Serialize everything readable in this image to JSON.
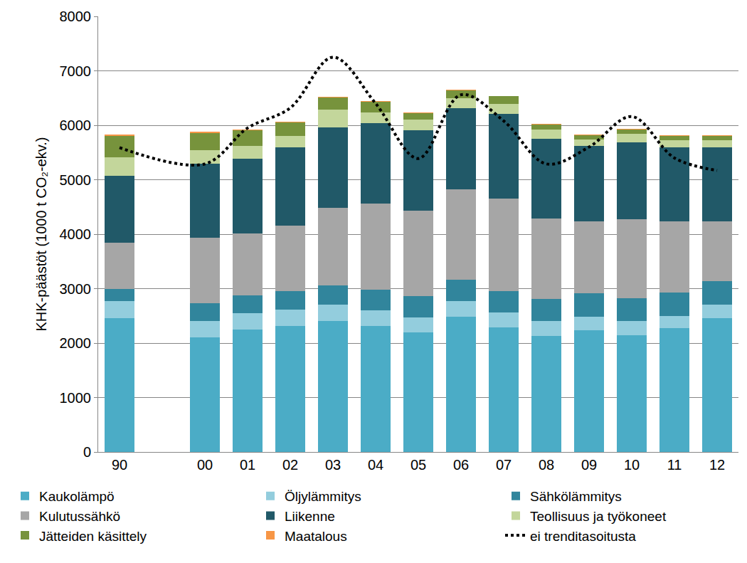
{
  "chart_data": {
    "type": "bar",
    "stacked": true,
    "grid": true,
    "legend": "bottom",
    "y_label": "KHK-päästöt (1000 t CO₂-ekv.)",
    "categories": [
      "90",
      null,
      "00",
      "01",
      "02",
      "03",
      "04",
      "05",
      "06",
      "07",
      "08",
      "09",
      "10",
      "11",
      "12"
    ],
    "ylim": [
      0,
      8000
    ],
    "yticks": [
      0,
      1000,
      2000,
      3000,
      4000,
      5000,
      6000,
      7000,
      8000
    ],
    "series": [
      {
        "name": "Kaukolämpö",
        "color": "#4BACC6",
        "values": [
          2460,
          null,
          2100,
          2250,
          2310,
          2400,
          2310,
          2200,
          2480,
          2290,
          2130,
          2230,
          2150,
          2270,
          2460
        ]
      },
      {
        "name": "Öljylämmitys",
        "color": "#93CDDD",
        "values": [
          310,
          null,
          300,
          300,
          300,
          310,
          290,
          270,
          290,
          270,
          280,
          250,
          250,
          230,
          240
        ]
      },
      {
        "name": "Sähkölämmitys",
        "color": "#31859C",
        "values": [
          220,
          null,
          330,
          320,
          350,
          350,
          380,
          390,
          390,
          400,
          400,
          430,
          430,
          430,
          440
        ]
      },
      {
        "name": "Kulutussähkö",
        "color": "#A6A6A6",
        "values": [
          855,
          null,
          1210,
          1140,
          1200,
          1430,
          1580,
          1570,
          1670,
          1690,
          1480,
          1320,
          1450,
          1310,
          1100
        ]
      },
      {
        "name": "Liikenne",
        "color": "#215968",
        "values": [
          1230,
          null,
          1360,
          1380,
          1430,
          1470,
          1480,
          1480,
          1480,
          1560,
          1460,
          1390,
          1410,
          1350,
          1360
        ]
      },
      {
        "name": "Teollisuus ja työkoneet",
        "color": "#C3D69B",
        "values": [
          335,
          null,
          240,
          230,
          210,
          330,
          190,
          200,
          190,
          180,
          170,
          120,
          150,
          130,
          120
        ]
      },
      {
        "name": "Jätteiden käsittely",
        "color": "#77933C",
        "values": [
          400,
          null,
          320,
          290,
          250,
          220,
          200,
          110,
          140,
          140,
          90,
          80,
          80,
          90,
          90
        ]
      },
      {
        "name": "Maatalous",
        "color": "#F79646",
        "values": [
          20,
          null,
          20,
          10,
          10,
          10,
          10,
          10,
          10,
          10,
          10,
          10,
          10,
          10,
          10
        ]
      },
      {
        "name": "ei trenditasoitusta",
        "color": "#000000",
        "type": "line",
        "line_style": "dotted",
        "values": [
          5590,
          null,
          5290,
          5950,
          6320,
          7250,
          6400,
          5390,
          6560,
          6080,
          5290,
          5600,
          6160,
          5400,
          5170
        ]
      }
    ]
  }
}
